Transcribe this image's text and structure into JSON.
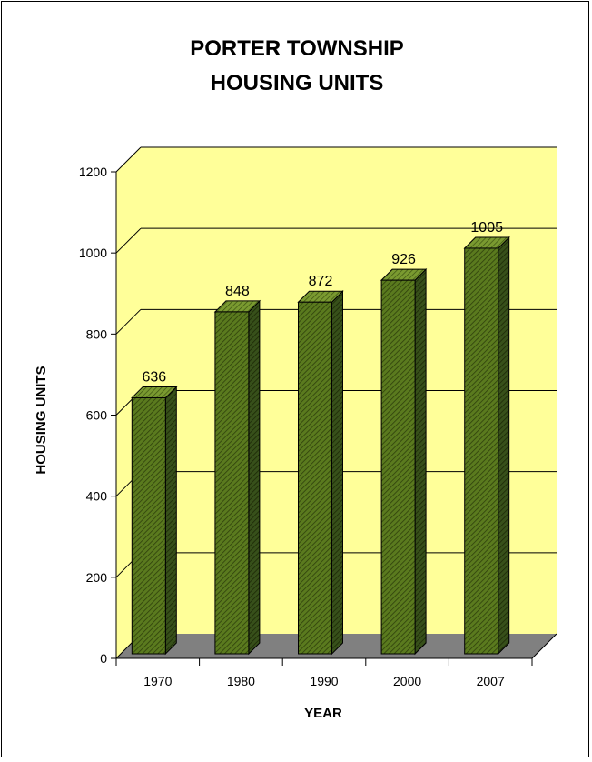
{
  "chart_data": {
    "type": "bar",
    "title": [
      "PORTER TOWNSHIP",
      "HOUSING UNITS"
    ],
    "xlabel": "YEAR",
    "ylabel": "HOUSING UNITS",
    "categories": [
      "1970",
      "1980",
      "1990",
      "2000",
      "2007"
    ],
    "values": [
      636,
      848,
      872,
      926,
      1005
    ],
    "data_labels": [
      "636",
      "848",
      "872",
      "926",
      "1005"
    ],
    "ylim": [
      0,
      1200
    ],
    "yticks": [
      0,
      200,
      400,
      600,
      800,
      1000,
      1200
    ],
    "grid": true,
    "style": "3d",
    "colors": {
      "wall": "#ffff99",
      "floor": "#808080",
      "bar_front": "#5a7a1e",
      "bar_side": "#2f420e",
      "bar_top": "#7a9a30",
      "gridline": "#000000"
    }
  }
}
